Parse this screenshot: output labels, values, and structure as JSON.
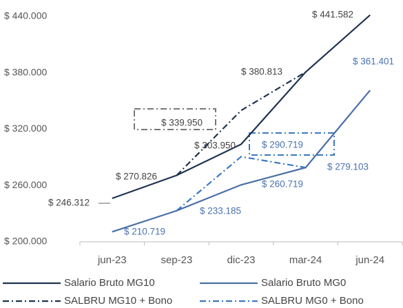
{
  "chart_data": {
    "type": "line",
    "categories": [
      "jun-23",
      "sep-23",
      "dic-23",
      "mar-24",
      "jun-24"
    ],
    "series": [
      {
        "name": "Salario Bruto MG10",
        "color": "#1f3350",
        "dash": "solid",
        "values": [
          246312,
          270826,
          303950,
          380813,
          441582
        ],
        "value_labels": [
          "$ 246.312",
          "$ 270.826",
          "$ 303.950",
          "$ 380.813",
          "$ 441.582"
        ]
      },
      {
        "name": "Salario Bruto MG0",
        "color": "#4a6fa5",
        "dash": "solid",
        "values": [
          210719,
          233185,
          260719,
          279103,
          361401
        ],
        "value_labels": [
          "$ 210.719",
          "$ 233.185",
          "$ 260.719",
          "$ 279.103",
          "$ 361.401"
        ]
      },
      {
        "name": "SALBRU MG10 + Bono",
        "color": "#1f3350",
        "dash": "dashdot",
        "values": [
          null,
          270826,
          339950,
          380813,
          null
        ],
        "value_labels": [
          null,
          null,
          "$ 339.950",
          null,
          null
        ]
      },
      {
        "name": "SALBRU MG0 + Bono",
        "color": "#3a78c0",
        "dash": "dashdot",
        "values": [
          null,
          233185,
          290719,
          279103,
          null
        ],
        "value_labels": [
          null,
          null,
          "$ 290.719",
          null,
          null
        ]
      }
    ],
    "ylim": [
      200000,
      440000
    ],
    "yticks": [
      {
        "value": 200000,
        "label": "$ 200.000"
      },
      {
        "value": 260000,
        "label": "$ 260.000"
      },
      {
        "value": 320000,
        "label": "$ 320.000"
      },
      {
        "value": 380000,
        "label": "$ 380.000"
      },
      {
        "value": 440000,
        "label": "$ 440.000"
      }
    ],
    "grid": false
  }
}
